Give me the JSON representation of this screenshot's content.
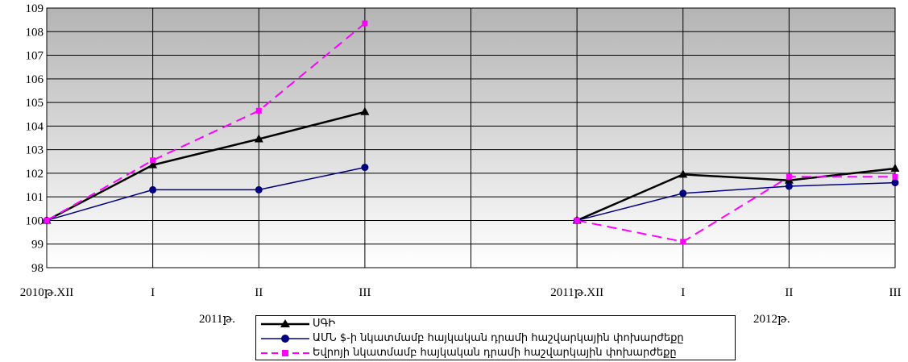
{
  "chart_data": {
    "type": "line",
    "ylim": [
      98,
      109
    ],
    "yticks": [
      98,
      99,
      100,
      101,
      102,
      103,
      104,
      105,
      106,
      107,
      108,
      109
    ],
    "categories": [
      "2010թ.XII",
      "I",
      "II",
      "III",
      "",
      "2011թ.XII",
      "I",
      "II",
      "III"
    ],
    "period_labels": [
      "2011թ.",
      "2012թ."
    ],
    "grid": true,
    "legend_position": "bottom-center",
    "series": [
      {
        "name": "ՍԳԻ",
        "color": "#000000",
        "marker": "triangle",
        "dash": "solid",
        "values": [
          100,
          102.35,
          103.45,
          104.6,
          null,
          100,
          101.95,
          101.7,
          102.2
        ]
      },
      {
        "name": "ԱՄՆ $-ի նկատմամբ հայկական դրամի հաշվարկային փոխարժեքը",
        "color": "#00007f",
        "marker": "circle",
        "dash": "solid",
        "values": [
          100,
          101.3,
          101.3,
          102.25,
          null,
          100,
          101.15,
          101.45,
          101.6
        ]
      },
      {
        "name": "Եվրոյի նկատմամբ հայկական դրամի հաշվարկային փոխարժեքը",
        "color": "#ff00ff",
        "marker": "square",
        "dash": "dashed",
        "values": [
          100,
          102.55,
          104.65,
          108.35,
          null,
          100,
          99.1,
          101.85,
          101.85
        ]
      }
    ]
  }
}
